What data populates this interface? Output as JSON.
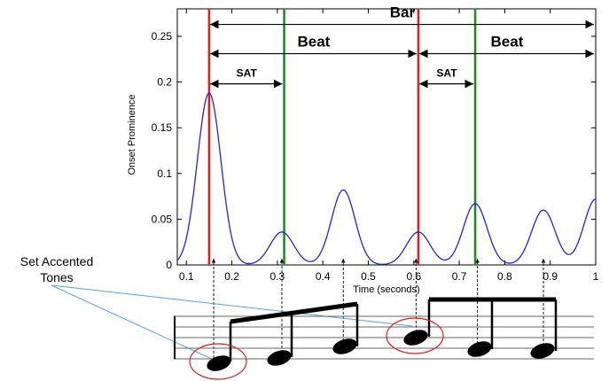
{
  "chart_data": {
    "type": "line",
    "title": "",
    "xlabel": "Time (seconds)",
    "ylabel": "Onset Prominence",
    "xlim": [
      0.08,
      1.0
    ],
    "ylim": [
      0,
      0.28
    ],
    "x_ticks": [
      0.1,
      0.2,
      0.3,
      0.4,
      0.5,
      0.6,
      0.7,
      0.8,
      0.9,
      1
    ],
    "y_ticks": [
      0,
      0.05,
      0.1,
      0.15,
      0.2,
      0.25
    ],
    "x_tick_labels": [
      "0.1",
      "0.2",
      "0.3",
      "0.4",
      "0.5",
      "0.6",
      "0.7",
      "0.8",
      "0.9",
      "1"
    ],
    "y_tick_labels": [
      "0",
      "0.05",
      "0.1",
      "0.15",
      "0.2",
      "0.25"
    ],
    "grid": false,
    "series": [
      {
        "peaks": [
          {
            "x": 0.15,
            "y": 0.188
          },
          {
            "x": 0.31,
            "y": 0.036
          },
          {
            "x": 0.445,
            "y": 0.082
          },
          {
            "x": 0.61,
            "y": 0.036
          },
          {
            "x": 0.735,
            "y": 0.067
          },
          {
            "x": 0.885,
            "y": 0.06
          },
          {
            "x": 1.0,
            "y": 0.072
          }
        ]
      }
    ],
    "vertical_lines": [
      {
        "x": 0.15,
        "color": "#e41e1e"
      },
      {
        "x": 0.315,
        "color": "#1a8a1a"
      },
      {
        "x": 0.61,
        "color": "#e41e1e"
      },
      {
        "x": 0.735,
        "color": "#1a8a1a"
      }
    ],
    "annotations": [
      {
        "label": "Bar",
        "x_from": 0.15,
        "x_to": 1.0,
        "y": 0.263
      },
      {
        "label": "Beat",
        "x_from": 0.15,
        "x_to": 0.61,
        "y": 0.231
      },
      {
        "label": "Beat",
        "x_from": 0.61,
        "x_to": 1.0,
        "y": 0.231
      },
      {
        "label": "SAT",
        "x_from": 0.15,
        "x_to": 0.315,
        "y": 0.198
      },
      {
        "label": "SAT",
        "x_from": 0.61,
        "x_to": 0.735,
        "y": 0.198
      }
    ],
    "onset_markers_x": [
      0.16,
      0.31,
      0.445,
      0.605,
      0.74,
      0.885
    ]
  },
  "side_label": {
    "line1": "Set Accented",
    "line2": "Tones"
  },
  "colors": {
    "curve": "#2323e6",
    "downbeat_line": "#e41e1e",
    "beat_line": "#1a8a1a",
    "pointer_line": "#4fa7e0",
    "highlight_circle": "#e41e1e"
  }
}
